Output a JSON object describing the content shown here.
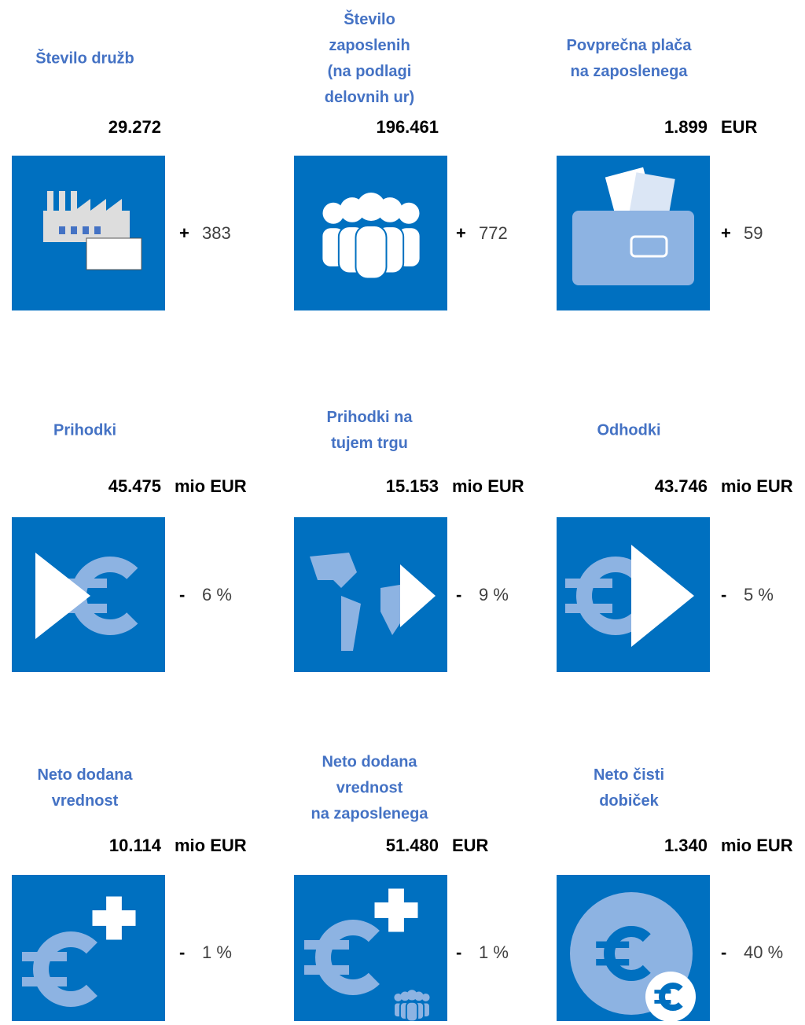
{
  "items": [
    {
      "title": [
        "Število družb"
      ],
      "value": "29.272",
      "change": {
        "sign": "+",
        "amount": "383"
      }
    },
    {
      "title": [
        "Število",
        "zaposlenih",
        "(na podlagi",
        "delovnih ur)"
      ],
      "value": "196.461",
      "change": {
        "sign": "+",
        "amount": "772"
      }
    },
    {
      "title": [
        "Povprečna plača",
        "na zaposlenega"
      ],
      "value": "1.899",
      "unit": "EUR",
      "change": {
        "sign": "+",
        "amount": "59"
      }
    },
    {
      "title": [
        "Prihodki"
      ],
      "value": "45.475",
      "unit": "mio EUR",
      "change": {
        "sign": "-",
        "amount": "6 %"
      }
    },
    {
      "title": [
        "Prihodki na",
        "tujem trgu"
      ],
      "value": "15.153",
      "unit": "mio EUR",
      "change": {
        "sign": "-",
        "amount": "9 %"
      }
    },
    {
      "title": [
        "Odhodki"
      ],
      "value": "43.746",
      "unit": "mio EUR",
      "change": {
        "sign": "-",
        "amount": "5 %"
      }
    },
    {
      "title": [
        "Neto dodana",
        "vrednost"
      ],
      "value": "10.114",
      "unit": "mio EUR",
      "change": {
        "sign": "-",
        "amount": "1 %"
      }
    },
    {
      "title": [
        "Neto dodana",
        "vrednost",
        "na zaposlenega"
      ],
      "value": "51.480",
      "unit": "EUR",
      "change": {
        "sign": "-",
        "amount": "1 %"
      }
    },
    {
      "title": [
        "Neto čisti",
        "dobiček"
      ],
      "value": "1.340",
      "unit": "mio EUR",
      "change": {
        "sign": "-",
        "amount": "40 %"
      }
    }
  ]
}
